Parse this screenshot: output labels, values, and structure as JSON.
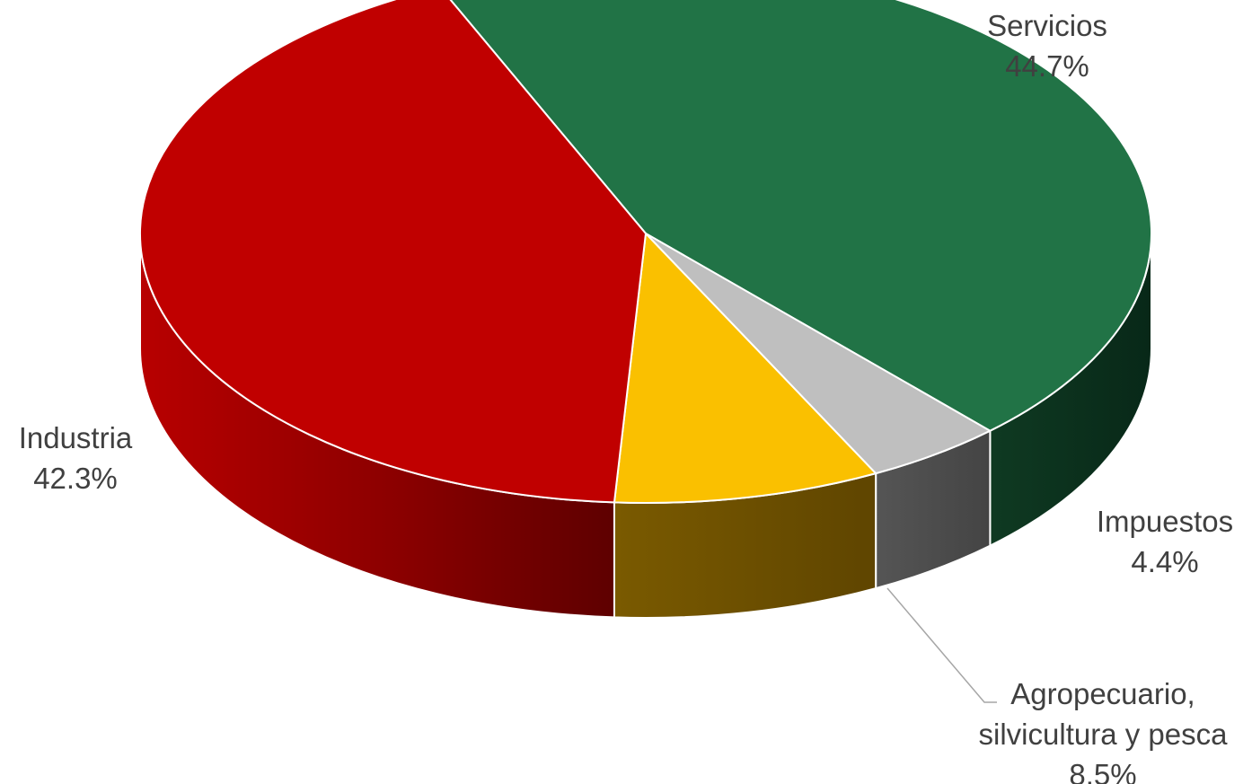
{
  "chart_data": {
    "type": "pie",
    "title": "",
    "slices": [
      {
        "label": "Servicios",
        "value": 44.7,
        "value_label": "44.7%",
        "color": "#217346",
        "side_color": "#0b2e1b"
      },
      {
        "label": "Impuestos",
        "value": 4.4,
        "value_label": "4.4%",
        "color": "#bfbfbf",
        "side_color": "#4d4d4d"
      },
      {
        "label": "Agropecuario, silvicultura y pesca",
        "label_lines": [
          "Agropecuario,",
          "silvicultura y pesca"
        ],
        "value": 8.5,
        "value_label": "8.5%",
        "color": "#fac000",
        "side_color": "#6b4d00"
      },
      {
        "label": "Industria",
        "value": 42.3,
        "value_label": "42.3%",
        "color": "#c00000",
        "side_color": "#8c0000"
      }
    ],
    "style": "3d",
    "legend": "none",
    "data_labels": "category-and-percent"
  }
}
